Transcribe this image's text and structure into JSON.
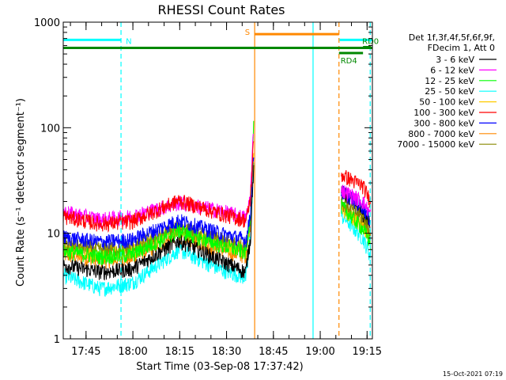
{
  "chart_data": {
    "type": "line",
    "title": "RHESSI Count Rates",
    "xlabel": "Start Time (03-Sep-08 17:37:42)",
    "ylabel": "Count Rate (s⁻¹ detector segment⁻¹)",
    "ylog": true,
    "ylim": [
      1,
      1000
    ],
    "xlim_minutes": [
      0,
      99
    ],
    "y_ticks": [
      {
        "value": 1,
        "label": "1"
      },
      {
        "value": 10,
        "label": "10"
      },
      {
        "value": 100,
        "label": "100"
      },
      {
        "value": 1000,
        "label": "1000"
      }
    ],
    "x_ticks": [
      {
        "minute": 7.3,
        "label": "17:45"
      },
      {
        "minute": 22.3,
        "label": "18:00"
      },
      {
        "minute": 37.3,
        "label": "18:15"
      },
      {
        "minute": 52.3,
        "label": "18:30"
      },
      {
        "minute": 67.3,
        "label": "18:45"
      },
      {
        "minute": 82.3,
        "label": "19:00"
      },
      {
        "minute": 97.3,
        "label": "19:15"
      }
    ],
    "legend_header": [
      "Det 1f,3f,4f,5f,6f,9f,",
      "FDecim 1, Att 0"
    ],
    "series": [
      {
        "name": "3 - 6 keV",
        "color": "#000000",
        "points": [
          [
            0,
            5.0
          ],
          [
            12,
            4.3
          ],
          [
            22,
            4.6
          ],
          [
            37,
            8.6
          ],
          [
            50,
            5.6
          ],
          [
            58.5,
            4.3
          ],
          [
            59,
            6
          ],
          [
            60,
            9
          ],
          [
            60.6,
            26
          ],
          [
            61,
            40
          ],
          [
            90,
            24
          ],
          [
            96,
            15
          ],
          [
            98.5,
            12
          ]
        ]
      },
      {
        "name": "6 - 12 keV",
        "color": "#ff00ff",
        "points": [
          [
            0,
            16
          ],
          [
            12,
            13.5
          ],
          [
            22,
            14.5
          ],
          [
            37,
            19.5
          ],
          [
            50,
            16.5
          ],
          [
            58.5,
            14
          ],
          [
            59,
            16
          ],
          [
            60,
            24
          ],
          [
            60.6,
            60
          ],
          [
            61,
            110
          ],
          [
            90,
            25
          ],
          [
            96,
            20
          ],
          [
            98.5,
            15
          ]
        ]
      },
      {
        "name": "12 - 25 keV",
        "color": "#00ff00",
        "points": [
          [
            0,
            6.8
          ],
          [
            12,
            6.0
          ],
          [
            22,
            6.3
          ],
          [
            37,
            10.6
          ],
          [
            50,
            7.8
          ],
          [
            58.5,
            6.6
          ],
          [
            59,
            9
          ],
          [
            60,
            16
          ],
          [
            60.6,
            60
          ],
          [
            61,
            105
          ],
          [
            90,
            17
          ],
          [
            96,
            11
          ],
          [
            98.5,
            8
          ]
        ]
      },
      {
        "name": "25 - 50 keV",
        "color": "#00ffff",
        "points": [
          [
            0,
            4.0
          ],
          [
            12,
            3.0
          ],
          [
            22,
            3.4
          ],
          [
            37,
            7.0
          ],
          [
            50,
            4.6
          ],
          [
            58.5,
            3.8
          ],
          [
            59,
            5
          ],
          [
            60,
            10
          ],
          [
            60.6,
            25
          ],
          [
            61,
            48
          ],
          [
            90,
            14
          ],
          [
            96,
            9
          ],
          [
            98.5,
            6
          ]
        ]
      },
      {
        "name": "50 - 100 keV",
        "color": "#ffcc00",
        "points": [
          [
            0,
            7.3
          ],
          [
            12,
            6.6
          ],
          [
            22,
            6.9
          ],
          [
            37,
            11.0
          ],
          [
            50,
            8.1
          ],
          [
            58.5,
            7.0
          ],
          [
            59,
            9
          ],
          [
            60,
            15
          ],
          [
            60.6,
            40
          ],
          [
            61,
            55
          ],
          [
            90,
            16
          ],
          [
            96,
            12
          ],
          [
            98.5,
            9
          ]
        ]
      },
      {
        "name": "100 - 300 keV",
        "color": "#ff0000",
        "points": [
          [
            0,
            14.5
          ],
          [
            12,
            12.3
          ],
          [
            22,
            13.0
          ],
          [
            37,
            20.5
          ],
          [
            50,
            15.5
          ],
          [
            58.5,
            13.3
          ],
          [
            59,
            15
          ],
          [
            60,
            22
          ],
          [
            60.6,
            50
          ],
          [
            61,
            75
          ],
          [
            90,
            35
          ],
          [
            96,
            28
          ],
          [
            98.5,
            20
          ]
        ]
      },
      {
        "name": "300 - 800 keV",
        "color": "#0000ff",
        "points": [
          [
            0,
            9.2
          ],
          [
            12,
            8.3
          ],
          [
            22,
            8.7
          ],
          [
            37,
            13.3
          ],
          [
            50,
            10.1
          ],
          [
            58.5,
            8.7
          ],
          [
            59,
            10
          ],
          [
            60,
            17
          ],
          [
            60.6,
            40
          ],
          [
            61,
            60
          ],
          [
            90,
            24
          ],
          [
            96,
            18
          ],
          [
            98.5,
            13
          ]
        ]
      },
      {
        "name": "800 - 7000 keV",
        "color": "#ff8800",
        "points": [
          [
            0,
            6.3
          ],
          [
            12,
            5.5
          ],
          [
            22,
            5.8
          ],
          [
            37,
            9.6
          ],
          [
            50,
            7.0
          ],
          [
            58.5,
            6.1
          ],
          [
            59,
            8
          ],
          [
            60,
            13
          ],
          [
            60.6,
            35
          ],
          [
            61,
            50
          ],
          [
            90,
            17
          ],
          [
            96,
            12
          ],
          [
            98.5,
            9
          ]
        ]
      },
      {
        "name": "7000 - 15000 keV",
        "color": "#888800",
        "points": [
          [
            0,
            7.8
          ],
          [
            12,
            7.0
          ],
          [
            22,
            7.3
          ],
          [
            37,
            11.5
          ],
          [
            50,
            8.7
          ],
          [
            58.5,
            7.6
          ],
          [
            59,
            9
          ],
          [
            60,
            15
          ],
          [
            60.6,
            38
          ],
          [
            61,
            55
          ],
          [
            90,
            19
          ],
          [
            96,
            14
          ],
          [
            98.5,
            10
          ]
        ]
      }
    ],
    "gap_minutes": [
      61,
      89
    ],
    "flag_bars": [
      {
        "label": "N",
        "color": "#00ffff",
        "segments": [
          [
            0,
            18.5
          ],
          [
            88.5,
            99
          ]
        ],
        "level": 680
      },
      {
        "label": "S",
        "color": "#ff8800",
        "segments": [
          [
            61.3,
            88.3
          ]
        ],
        "level": 770
      },
      {
        "label": "",
        "color": "#008800",
        "segments": [
          [
            0,
            99
          ]
        ],
        "level": 570
      },
      {
        "label": "RD0",
        "color": "#008800",
        "segments": [
          [
            96,
            98.5
          ]
        ],
        "level": 580
      },
      {
        "label": "RD4",
        "color": "#008800",
        "segments": [
          [
            88.3,
            96
          ]
        ],
        "level": 510
      }
    ],
    "vertical_lines": [
      {
        "minute": 18.5,
        "color": "#00ffff",
        "style": "dashed"
      },
      {
        "minute": 61.3,
        "color": "#ff8800",
        "style": "solid"
      },
      {
        "minute": 80.0,
        "color": "#00ffff",
        "style": "solid"
      },
      {
        "minute": 88.3,
        "color": "#ff8800",
        "style": "dashed"
      },
      {
        "minute": 98.3,
        "color": "#00ffff",
        "style": "dashed"
      }
    ],
    "timestamp": "15-Oct-2021 07:19"
  }
}
